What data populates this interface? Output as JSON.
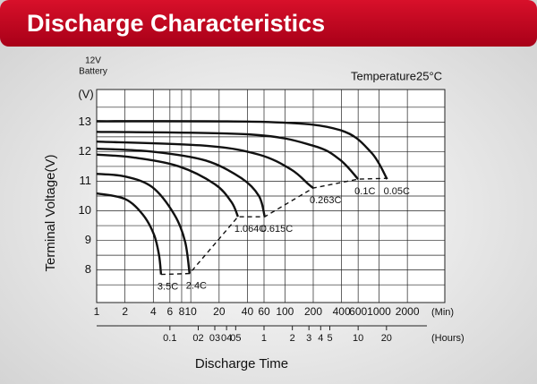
{
  "chart_data": {
    "type": "line",
    "title": "Discharge Characteristics",
    "battery_label": [
      "12V",
      "Battery"
    ],
    "temperature": "Temperature25°C",
    "y_unit": "(V)",
    "ylabel": "Terminal Voltage(V)",
    "xlabel": "Discharge Time",
    "x_unit": "(Min)",
    "x2_unit": "(Hours)",
    "xscale": "log",
    "xlim": [
      1,
      5000
    ],
    "xticks": [
      1,
      2,
      4,
      6,
      8,
      10,
      20,
      40,
      60,
      100,
      200,
      400,
      600,
      1000,
      2000
    ],
    "x2lim": [
      0.016667,
      83.333
    ],
    "x2ticks": [
      {
        "value": 0.1,
        "label": "0.1"
      },
      {
        "value": 0.2,
        "label": "02"
      },
      {
        "value": 0.3,
        "label": "03"
      },
      {
        "value": 0.4,
        "label": "04"
      },
      {
        "value": 0.5,
        "label": "05"
      },
      1,
      2,
      3,
      4,
      5,
      10,
      20
    ],
    "ylim": [
      6.9,
      14.1
    ],
    "yticks": [
      8,
      9,
      10,
      11,
      12,
      13
    ],
    "y_minor_ticks": [
      7.5,
      8.5,
      9.5,
      10.5,
      11.5,
      12.5,
      13.5
    ],
    "grid": true,
    "color": "#111111",
    "series": [
      {
        "name": "3.5C",
        "x": [
          1,
          2,
          3.1,
          4.06,
          4.6,
          4.83
        ],
        "values": [
          10.59,
          10.4,
          9.87,
          9.2,
          8.5,
          7.85
        ]
      },
      {
        "name": "2.4C",
        "x": [
          1,
          2,
          3.9,
          6.7,
          8.7,
          9.7
        ],
        "values": [
          11.25,
          11.16,
          10.8,
          9.87,
          8.96,
          7.88
        ]
      },
      {
        "name": "1.064C",
        "x": [
          1,
          2.5,
          7.5,
          18,
          27,
          31.7
        ],
        "values": [
          11.9,
          11.8,
          11.5,
          10.9,
          10.3,
          9.8
        ]
      },
      {
        "name": "0.615C",
        "x": [
          1,
          3.9,
          14.4,
          34.6,
          53,
          61
        ],
        "values": [
          12.1,
          12.0,
          11.7,
          11.1,
          10.5,
          9.8
        ]
      },
      {
        "name": "0.263C",
        "x": [
          1,
          14.4,
          53,
          116,
          178,
          200
        ],
        "values": [
          12.34,
          12.2,
          11.9,
          11.4,
          10.9,
          10.77
        ]
      },
      {
        "name": "0.1C",
        "x": [
          1,
          43,
          200,
          383,
          600
        ],
        "values": [
          12.67,
          12.58,
          12.2,
          11.73,
          11.07
        ]
      },
      {
        "name": "0.05C",
        "x": [
          1,
          67,
          383,
          822,
          1220
        ],
        "values": [
          13.03,
          13.0,
          12.73,
          11.98,
          11.07
        ]
      }
    ],
    "cutoff": {
      "x": [
        4.83,
        9.7,
        31.7,
        61,
        200,
        600,
        1220
      ],
      "values": [
        7.85,
        7.88,
        9.8,
        9.8,
        10.77,
        11.07,
        11.1
      ]
    }
  }
}
